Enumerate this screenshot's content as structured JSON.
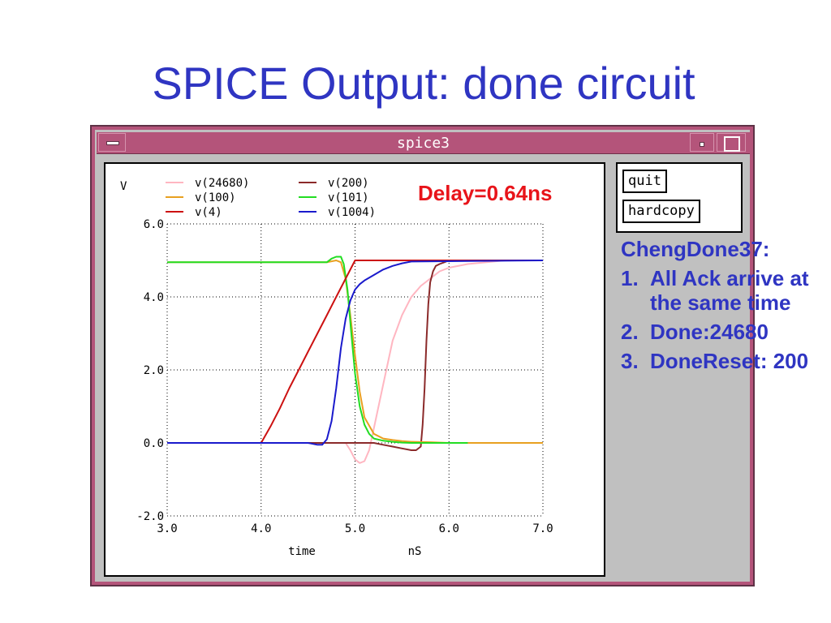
{
  "slide": {
    "title": "SPICE Output: done circuit",
    "delay_label": "Delay=0.64ns",
    "notes": {
      "heading": "ChengDone37:",
      "items": [
        {
          "num": "1.",
          "text": "All Ack arrive at the same time"
        },
        {
          "num": "2.",
          "text": "Done:24680"
        },
        {
          "num": "3.",
          "text": "DoneReset: 200"
        }
      ]
    }
  },
  "window": {
    "title": "spice3",
    "buttons": {
      "quit": "quit",
      "hardcopy": "hardcopy"
    },
    "icons": {
      "menu": "window-menu-icon",
      "minimize": "minimize-icon",
      "maximize": "maximize-icon"
    },
    "colors": {
      "titlebar": "#b4547a",
      "frame": "#5e3246"
    }
  },
  "chart_data": {
    "type": "line",
    "ylabel": "V",
    "xlabel": "time",
    "xunit": "nS",
    "xlim": [
      3.0,
      7.0
    ],
    "ylim": [
      -2.0,
      6.0
    ],
    "xticks": [
      "3.0",
      "4.0",
      "5.0",
      "6.0",
      "7.0"
    ],
    "yticks": [
      "6.0",
      "4.0",
      "2.0",
      "0.0",
      "-2.0"
    ],
    "grid": true,
    "legend_position": "top-left",
    "series": [
      {
        "name": "v(24680)",
        "color": "#ffb6c1",
        "x": [
          3.0,
          4.9,
          4.95,
          5.0,
          5.05,
          5.1,
          5.15,
          5.2,
          5.3,
          5.4,
          5.5,
          5.6,
          5.7,
          5.8,
          5.9,
          6.0,
          6.2,
          6.4,
          6.6,
          7.0
        ],
        "y": [
          0,
          0,
          -0.2,
          -0.45,
          -0.55,
          -0.5,
          -0.2,
          0.4,
          1.6,
          2.8,
          3.5,
          4.0,
          4.3,
          4.5,
          4.7,
          4.8,
          4.9,
          4.95,
          5.0,
          5.0
        ]
      },
      {
        "name": "v(200)",
        "color": "#8b2a2a",
        "x": [
          3.0,
          5.2,
          5.3,
          5.4,
          5.5,
          5.6,
          5.65,
          5.7,
          5.72,
          5.74,
          5.76,
          5.78,
          5.8,
          5.83,
          5.86,
          5.9,
          5.95,
          6.0,
          7.0
        ],
        "y": [
          0,
          0,
          -0.05,
          -0.1,
          -0.15,
          -0.2,
          -0.2,
          -0.1,
          0.5,
          1.5,
          2.8,
          3.8,
          4.4,
          4.7,
          4.85,
          4.9,
          4.95,
          5.0,
          5.0
        ]
      },
      {
        "name": "v(100)",
        "color": "#e8a020",
        "x": [
          3.0,
          4.7,
          4.8,
          4.85,
          4.9,
          4.95,
          5.0,
          5.05,
          5.1,
          5.2,
          5.3,
          5.4,
          5.5,
          5.6,
          5.8,
          6.0,
          7.0
        ],
        "y": [
          4.95,
          4.95,
          5.0,
          4.95,
          4.5,
          3.5,
          2.4,
          1.4,
          0.7,
          0.25,
          0.12,
          0.08,
          0.05,
          0.03,
          0.02,
          0.0,
          0.0
        ]
      },
      {
        "name": "v(101)",
        "color": "#22dd22",
        "x": [
          3.0,
          4.7,
          4.75,
          4.8,
          4.85,
          4.88,
          4.92,
          4.96,
          5.0,
          5.05,
          5.1,
          5.15,
          5.2,
          5.3,
          5.4,
          5.5,
          5.6,
          6.2
        ],
        "y": [
          4.95,
          4.95,
          5.05,
          5.1,
          5.1,
          4.9,
          4.2,
          3.0,
          1.9,
          1.0,
          0.5,
          0.25,
          0.12,
          0.06,
          0.03,
          0.01,
          0.0,
          0.0
        ]
      },
      {
        "name": "v(4)",
        "color": "#cc1111",
        "x": [
          3.0,
          4.0,
          4.1,
          4.2,
          4.3,
          4.4,
          4.5,
          4.6,
          4.7,
          4.8,
          4.9,
          5.0,
          7.0
        ],
        "y": [
          0,
          0,
          0.45,
          0.95,
          1.5,
          2.0,
          2.5,
          3.0,
          3.5,
          4.0,
          4.5,
          5.0,
          5.0
        ]
      },
      {
        "name": "v(1004)",
        "color": "#1a1acc",
        "x": [
          3.0,
          4.0,
          4.3,
          4.5,
          4.6,
          4.65,
          4.7,
          4.75,
          4.8,
          4.85,
          4.9,
          4.95,
          5.0,
          5.05,
          5.1,
          5.2,
          5.3,
          5.4,
          5.5,
          5.6,
          7.0
        ],
        "y": [
          0,
          0,
          0,
          0,
          -0.05,
          -0.05,
          0.1,
          0.6,
          1.5,
          2.6,
          3.4,
          3.9,
          4.2,
          4.35,
          4.45,
          4.6,
          4.75,
          4.85,
          4.92,
          4.97,
          5.0
        ]
      }
    ]
  }
}
